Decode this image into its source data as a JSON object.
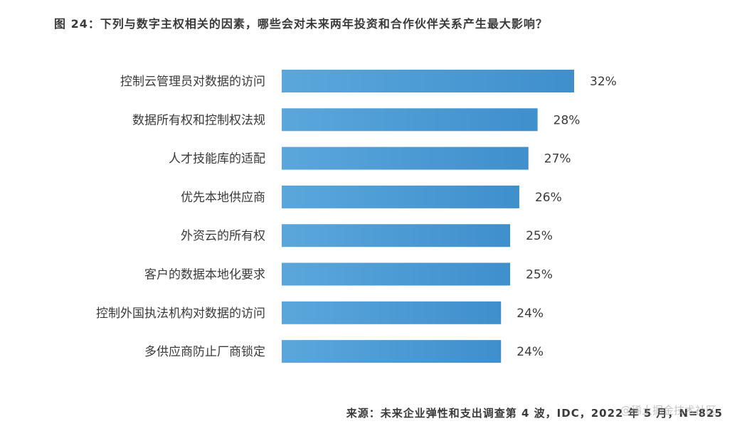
{
  "title": "图 24：下列与数字主权相关的因素，哪些会对未来两年投资和合作伙伴关系产生最大影响？",
  "source": "来源：未来企业弹性和支出调查第 4 波，IDC，2022 年 5 月，N=825",
  "watermark": "@稀土掘金技术社区",
  "colors": {
    "bar_start": "#5ba7dc",
    "bar_end": "#3f8fcd"
  },
  "chart_data": {
    "type": "bar",
    "orientation": "horizontal",
    "categories": [
      "控制云管理员对数据的访问",
      "数据所有权和控制权法规",
      "人才技能库的适配",
      "优先本地供应商",
      "外资云的所有权",
      "客户的数据本地化要求",
      "控制外国执法机构对数据的访问",
      "多供应商防止厂商锁定"
    ],
    "values": [
      32,
      28,
      27,
      26,
      25,
      25,
      24,
      24
    ],
    "value_labels": [
      "32%",
      "28%",
      "27%",
      "26%",
      "25%",
      "25%",
      "24%",
      "24%"
    ],
    "unit": "%",
    "xlim": [
      0,
      32
    ],
    "grid": false,
    "legend": "none"
  }
}
